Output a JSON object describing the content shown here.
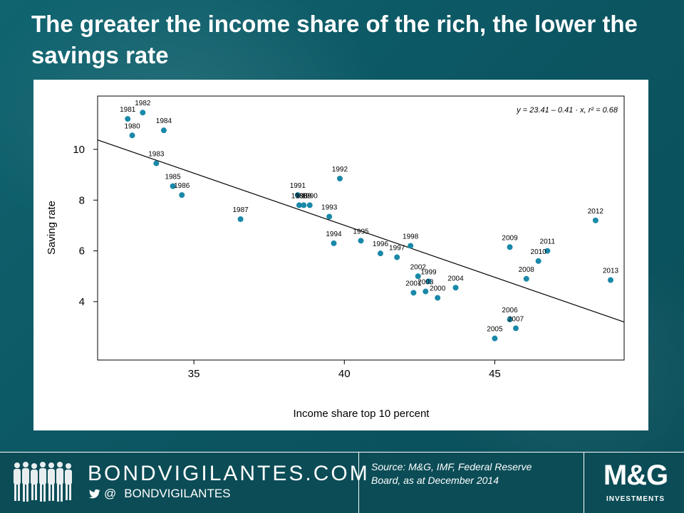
{
  "slide": {
    "title": "The greater the income share of the rich, the lower the savings rate"
  },
  "chart_data": {
    "type": "scatter",
    "xlabel": "Income share top 10 percent",
    "ylabel": "Saving rate",
    "xlim": [
      31.8,
      49.3
    ],
    "ylim": [
      1.7,
      12.1
    ],
    "xticks": [
      35,
      40,
      45
    ],
    "yticks": [
      4,
      6,
      8,
      10
    ],
    "equation_label": "y = 23.41 – 0.41 · x,  r² = 0.68",
    "trend_line": {
      "intercept": 23.41,
      "slope": -0.41
    },
    "grid": false,
    "point_color": "#1a88a8",
    "points": [
      {
        "label": "1980",
        "x": 32.95,
        "y": 10.55
      },
      {
        "label": "1981",
        "x": 32.8,
        "y": 11.2
      },
      {
        "label": "1982",
        "x": 33.3,
        "y": 11.45
      },
      {
        "label": "1983",
        "x": 33.75,
        "y": 9.45
      },
      {
        "label": "1984",
        "x": 34.0,
        "y": 10.75
      },
      {
        "label": "1985",
        "x": 34.3,
        "y": 8.55
      },
      {
        "label": "1986",
        "x": 34.6,
        "y": 8.2
      },
      {
        "label": "1987",
        "x": 36.55,
        "y": 7.25
      },
      {
        "label": "1988",
        "x": 38.5,
        "y": 7.8
      },
      {
        "label": "1989",
        "x": 38.65,
        "y": 7.8
      },
      {
        "label": "1990",
        "x": 38.85,
        "y": 7.8
      },
      {
        "label": "1991",
        "x": 38.45,
        "y": 8.2
      },
      {
        "label": "1992",
        "x": 39.85,
        "y": 8.85
      },
      {
        "label": "1993",
        "x": 39.5,
        "y": 7.35
      },
      {
        "label": "1994",
        "x": 39.65,
        "y": 6.3
      },
      {
        "label": "1995",
        "x": 40.55,
        "y": 6.4
      },
      {
        "label": "1996",
        "x": 41.2,
        "y": 5.9
      },
      {
        "label": "1997",
        "x": 41.75,
        "y": 5.75
      },
      {
        "label": "1998",
        "x": 42.2,
        "y": 6.2
      },
      {
        "label": "1999",
        "x": 42.8,
        "y": 4.8
      },
      {
        "label": "2000",
        "x": 43.1,
        "y": 4.15
      },
      {
        "label": "2001",
        "x": 42.3,
        "y": 4.35
      },
      {
        "label": "2002",
        "x": 42.45,
        "y": 5.0
      },
      {
        "label": "2003",
        "x": 42.7,
        "y": 4.4
      },
      {
        "label": "2004",
        "x": 43.7,
        "y": 4.55
      },
      {
        "label": "2005",
        "x": 45.0,
        "y": 2.55
      },
      {
        "label": "2006",
        "x": 45.5,
        "y": 3.3
      },
      {
        "label": "2007",
        "x": 45.7,
        "y": 2.95
      },
      {
        "label": "2008",
        "x": 46.05,
        "y": 4.9
      },
      {
        "label": "2009",
        "x": 45.5,
        "y": 6.15
      },
      {
        "label": "2010",
        "x": 46.45,
        "y": 5.6
      },
      {
        "label": "2011",
        "x": 46.75,
        "y": 6.0
      },
      {
        "label": "2012",
        "x": 48.35,
        "y": 7.2
      },
      {
        "label": "2013",
        "x": 48.85,
        "y": 4.85
      }
    ]
  },
  "footer": {
    "brand": "BONDVIGILANTES.COM",
    "twitter_at": "@",
    "twitter_handle": "BONDVIGILANTES",
    "source": "Source: M&G, IMF, Federal Reserve Board, as at December 2014",
    "logo_main": "M&G",
    "logo_sub": "INVESTMENTS"
  }
}
